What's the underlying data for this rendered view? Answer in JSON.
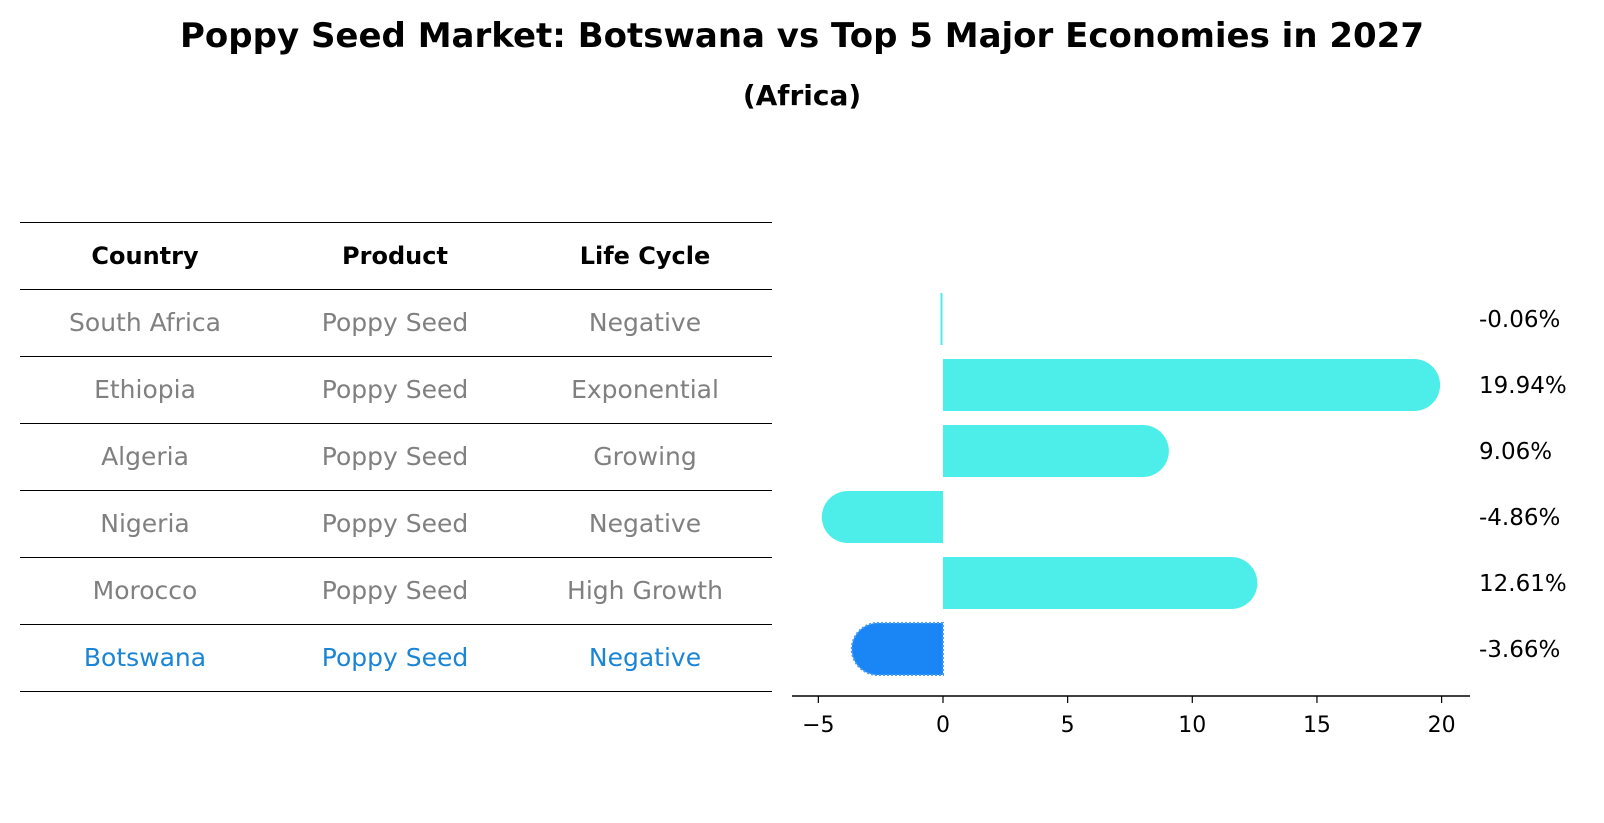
{
  "title": "Poppy Seed Market: Botswana vs Top 5 Major Economies in 2027",
  "subtitle": "(Africa)",
  "table": {
    "headers": [
      "Country",
      "Product",
      "Life Cycle"
    ],
    "rows": [
      {
        "country": "South Africa",
        "product": "Poppy Seed",
        "life_cycle": "Negative"
      },
      {
        "country": "Ethiopia",
        "product": "Poppy Seed",
        "life_cycle": "Exponential"
      },
      {
        "country": "Algeria",
        "product": "Poppy Seed",
        "life_cycle": "Growing"
      },
      {
        "country": "Nigeria",
        "product": "Poppy Seed",
        "life_cycle": "Negative"
      },
      {
        "country": "Morocco",
        "product": "Poppy Seed",
        "life_cycle": "High Growth"
      },
      {
        "country": "Botswana",
        "product": "Poppy Seed",
        "life_cycle": "Negative"
      }
    ],
    "highlight_row_color": "#1a85d6",
    "normal_text_color": "#808080"
  },
  "chart_data": {
    "type": "bar",
    "orientation": "horizontal",
    "categories": [
      "South Africa",
      "Ethiopia",
      "Algeria",
      "Nigeria",
      "Morocco",
      "Botswana"
    ],
    "values": [
      -0.06,
      19.94,
      9.06,
      -4.86,
      12.61,
      -3.66
    ],
    "data_labels": [
      "-0.06%",
      "19.94%",
      "9.06%",
      "-4.86%",
      "12.61%",
      "-3.66%"
    ],
    "xlim": [
      -6,
      21.2
    ],
    "xticks": [
      -5,
      0,
      5,
      10,
      15,
      20
    ],
    "xtick_labels": [
      "−5",
      "0",
      "5",
      "10",
      "15",
      "20"
    ],
    "bar_color": "#4deeea",
    "highlight_color": "#1a85f5",
    "highlight_category": "Botswana",
    "grid": false
  }
}
